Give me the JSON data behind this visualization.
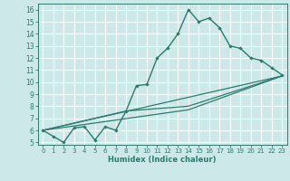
{
  "title": "",
  "xlabel": "Humidex (Indice chaleur)",
  "bg_color": "#cce8e8",
  "line_color": "#2d7b6e",
  "grid_color": "#ffffff",
  "xlim": [
    -0.5,
    23.5
  ],
  "ylim": [
    4.8,
    16.5
  ],
  "yticks": [
    5,
    6,
    7,
    8,
    9,
    10,
    11,
    12,
    13,
    14,
    15,
    16
  ],
  "xticks": [
    0,
    1,
    2,
    3,
    4,
    5,
    6,
    7,
    8,
    9,
    10,
    11,
    12,
    13,
    14,
    15,
    16,
    17,
    18,
    19,
    20,
    21,
    22,
    23
  ],
  "main_x": [
    0,
    1,
    2,
    3,
    4,
    5,
    6,
    7,
    8,
    9,
    10,
    11,
    12,
    13,
    14,
    15,
    16,
    17,
    18,
    19,
    20,
    21,
    22,
    23
  ],
  "main_y": [
    6.0,
    5.5,
    5.0,
    6.2,
    6.3,
    5.2,
    6.3,
    6.0,
    7.6,
    9.7,
    9.8,
    12.0,
    12.8,
    14.0,
    16.0,
    15.0,
    15.3,
    14.5,
    13.0,
    12.8,
    12.0,
    11.8,
    11.2,
    10.6
  ],
  "line2_x": [
    0,
    23
  ],
  "line2_y": [
    6.0,
    10.5
  ],
  "line3_x": [
    0,
    14,
    23
  ],
  "line3_y": [
    6.0,
    7.7,
    10.5
  ],
  "line4_x": [
    0,
    8,
    14,
    23
  ],
  "line4_y": [
    6.0,
    7.6,
    8.0,
    10.5
  ],
  "tick_fontsize": 5,
  "xlabel_fontsize": 6
}
